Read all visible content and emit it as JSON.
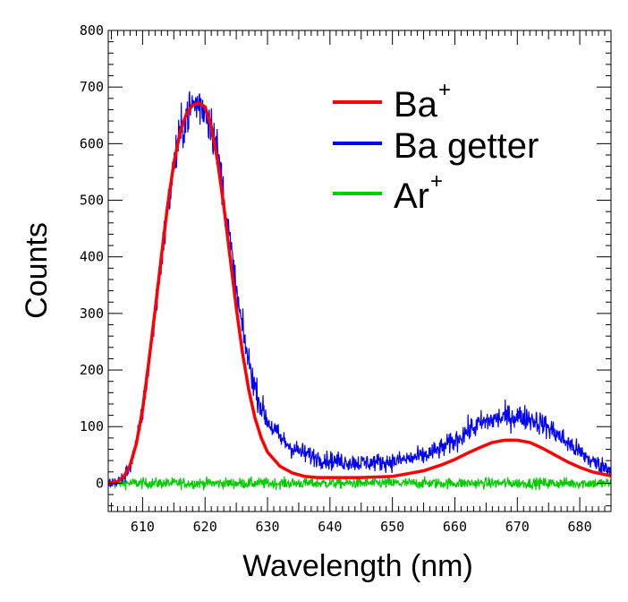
{
  "chart_data": {
    "type": "line",
    "xlabel": "Wavelength (nm)",
    "ylabel": "Counts",
    "xlim": [
      604.5,
      685
    ],
    "ylim": [
      -50,
      800
    ],
    "xticks": [
      610,
      620,
      630,
      640,
      650,
      660,
      670,
      680
    ],
    "yticks": [
      0,
      100,
      200,
      300,
      400,
      500,
      600,
      700,
      800
    ],
    "grid": false,
    "legend_position": "top-right",
    "series": [
      {
        "name": "Ba",
        "name_superscript": "+",
        "color": "#ff0000",
        "style": "smooth",
        "x": [
          604.5,
          606,
          607,
          608,
          609,
          610,
          611,
          612,
          613,
          614,
          615,
          616,
          617,
          618,
          619,
          620,
          621,
          622,
          623,
          624,
          625,
          626,
          627,
          628,
          629,
          630,
          632,
          634,
          636,
          638,
          640,
          645,
          650,
          655,
          658,
          660,
          662,
          664,
          666,
          668,
          670,
          672,
          674,
          676,
          678,
          680,
          682,
          685
        ],
        "y": [
          0,
          3,
          12,
          32,
          70,
          130,
          215,
          305,
          400,
          490,
          565,
          620,
          652,
          668,
          672,
          665,
          630,
          570,
          490,
          400,
          310,
          230,
          165,
          115,
          80,
          55,
          30,
          18,
          12,
          10,
          10,
          10,
          12,
          22,
          33,
          42,
          53,
          63,
          72,
          76,
          76,
          72,
          62,
          50,
          38,
          28,
          20,
          13
        ]
      },
      {
        "name": "Ba getter",
        "name_superscript": "",
        "color": "#0000ff",
        "style": "noisy",
        "x": [
          604.5,
          606,
          607,
          608,
          609,
          610,
          611,
          612,
          613,
          614,
          615,
          616,
          617,
          618,
          619,
          620,
          621,
          622,
          623,
          624,
          625,
          626,
          627,
          628,
          629,
          630,
          632,
          634,
          636,
          638,
          640,
          645,
          650,
          655,
          658,
          660,
          662,
          664,
          666,
          668,
          670,
          672,
          674,
          676,
          678,
          680,
          682,
          685
        ],
        "y": [
          0,
          3,
          10,
          30,
          68,
          128,
          210,
          300,
          395,
          480,
          560,
          615,
          648,
          668,
          670,
          660,
          635,
          585,
          510,
          425,
          340,
          270,
          215,
          170,
          135,
          110,
          80,
          62,
          52,
          45,
          40,
          36,
          38,
          48,
          62,
          75,
          92,
          105,
          112,
          117,
          118,
          115,
          105,
          90,
          72,
          55,
          38,
          25
        ]
      },
      {
        "name": "Ar",
        "name_superscript": "+",
        "color": "#00cc00",
        "style": "noisy",
        "x": [
          604.5,
          685
        ],
        "y": [
          0,
          0
        ]
      }
    ]
  }
}
